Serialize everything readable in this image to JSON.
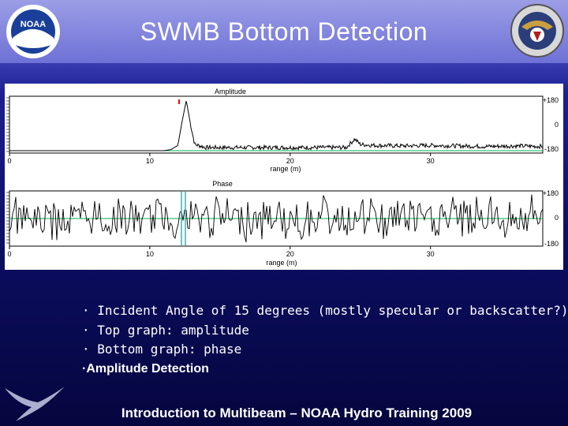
{
  "slide": {
    "title": "SWMB Bottom Detection",
    "footer": "Introduction to Multibeam – NOAA Hydro Training 2009"
  },
  "logos": {
    "left": "noaa-logo",
    "left_text": "NOAA",
    "right": "commissioned-corps-seal"
  },
  "bullets": [
    "· Incident Angle of 15 degrees (mostly specular or backscatter?)",
    "· Top graph: amplitude",
    "· Bottom graph: phase"
  ],
  "bullet_bold": "·Amplitude Detection",
  "colors": {
    "title_bar": "#7e81dc",
    "background_dark": "#05063e",
    "text": "#ffffff",
    "plot_line": "#000000",
    "plot_baseline": "#00b050",
    "marker": "#ff0000",
    "highlight": "#3fb0b0"
  },
  "chart_data": [
    {
      "type": "line",
      "title": "Amplitude",
      "xlabel": "range (m)",
      "xlim": [
        0,
        38
      ],
      "xticks": [
        "0",
        "10",
        "20",
        "30"
      ],
      "xtick_values": [
        0,
        10,
        20,
        30
      ],
      "right_ticks": [
        "+180",
        "0",
        "-180"
      ],
      "series": [
        {
          "x": [
            0,
            11,
            11.5,
            12,
            12.3,
            12.6,
            12.9,
            13.2,
            14,
            16,
            20,
            24,
            24.6,
            25,
            26,
            28,
            30,
            32,
            34,
            36,
            38
          ],
          "values": [
            0,
            0,
            2,
            10,
            55,
            95,
            50,
            12,
            6,
            6,
            6,
            6,
            22,
            12,
            10,
            9,
            10,
            9,
            8,
            9,
            8
          ]
        }
      ]
    },
    {
      "type": "line",
      "title": "Phase",
      "xlabel": "range (m)",
      "xlim": [
        0,
        38
      ],
      "xticks": [
        "0",
        "10",
        "20",
        "30"
      ],
      "xtick_values": [
        0,
        10,
        20,
        30
      ],
      "right_ticks": [
        "+180",
        "0",
        "-180"
      ],
      "series": [
        {
          "description_values_range": [
            -180,
            180
          ],
          "values": [
            0
          ]
        }
      ]
    }
  ]
}
